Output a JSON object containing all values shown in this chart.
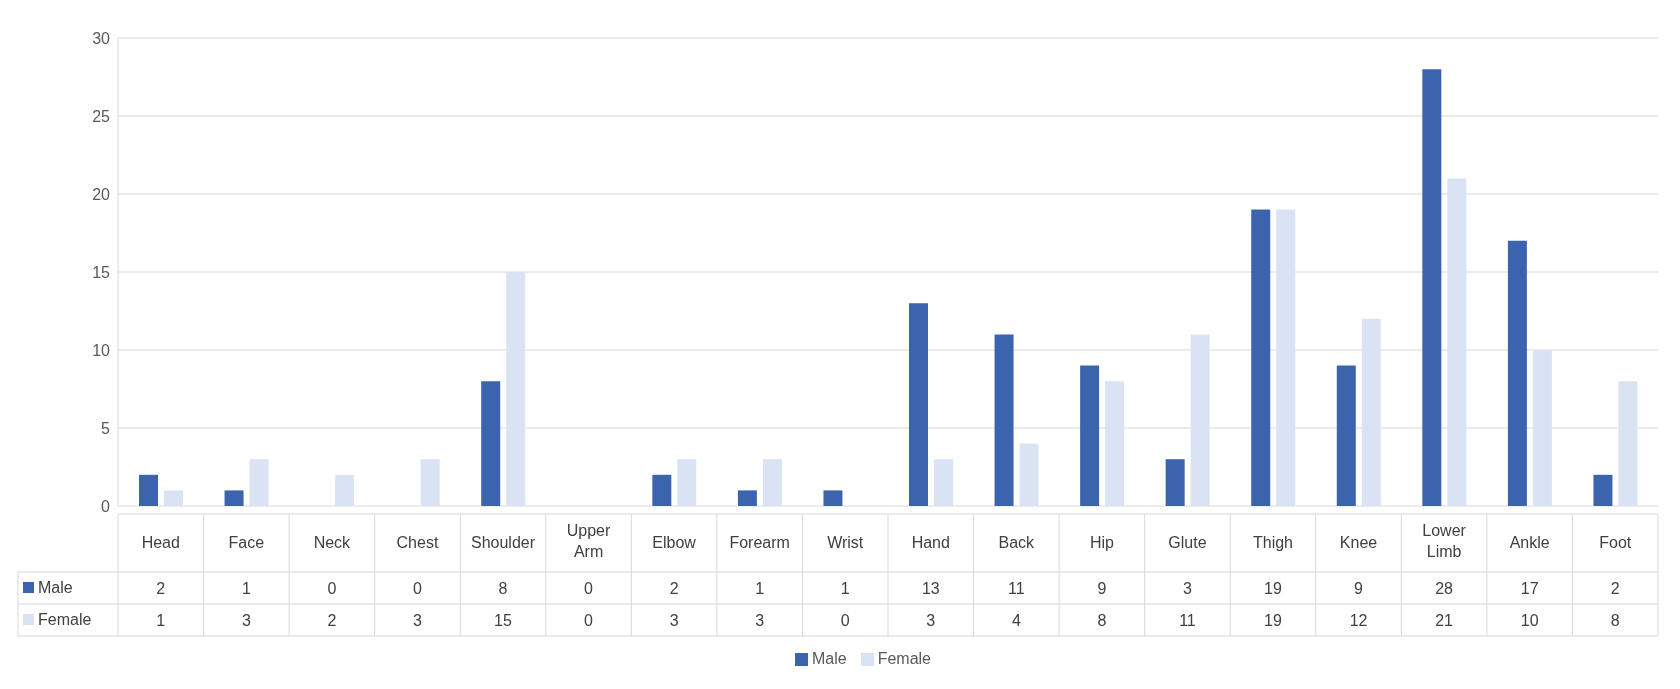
{
  "chart_data": {
    "type": "bar",
    "categories": [
      "Head",
      "Face",
      "Neck",
      "Chest",
      "Shoulder",
      "Upper Arm",
      "Elbow",
      "Forearm",
      "Wrist",
      "Hand",
      "Back",
      "Hip",
      "Glute",
      "Thigh",
      "Knee",
      "Lower Limb",
      "Ankle",
      "Foot"
    ],
    "series": [
      {
        "name": "Male",
        "color": "#3c64ae",
        "values": [
          2,
          1,
          0,
          0,
          8,
          0,
          2,
          1,
          1,
          13,
          11,
          9,
          3,
          19,
          9,
          28,
          17,
          2
        ]
      },
      {
        "name": "Female",
        "color": "#dae3f3",
        "values": [
          1,
          3,
          2,
          3,
          15,
          0,
          3,
          3,
          0,
          3,
          4,
          8,
          11,
          19,
          12,
          21,
          10,
          8
        ]
      }
    ],
    "ylim": [
      0,
      30
    ],
    "yticks": [
      0,
      5,
      10,
      15,
      20,
      25,
      30
    ],
    "grid": "y",
    "legend": "bottom",
    "data_labels": true
  }
}
